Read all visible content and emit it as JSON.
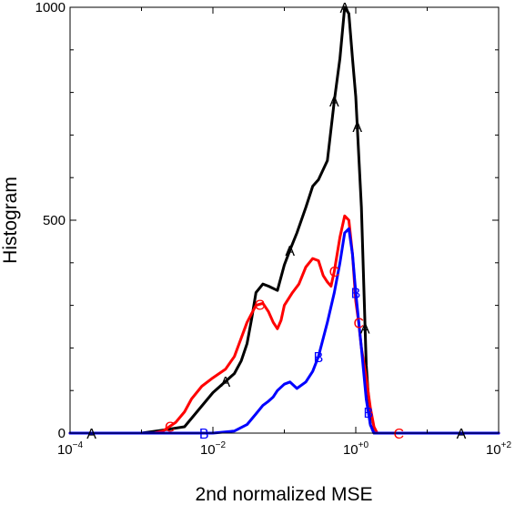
{
  "chart_data": {
    "type": "line",
    "xlabel": "2nd normalized MSE",
    "ylabel": "Histogram",
    "x_scale": "log",
    "xlim": [
      0.0001,
      100
    ],
    "ylim": [
      0,
      1000
    ],
    "x_ticks": [
      {
        "value": 0.0001,
        "base": "10",
        "exp": "−4"
      },
      {
        "value": 0.01,
        "base": "10",
        "exp": "−2"
      },
      {
        "value": 1,
        "base": "10",
        "exp": "+0"
      },
      {
        "value": 100,
        "base": "10",
        "exp": "+2"
      }
    ],
    "y_ticks": [
      {
        "value": 0,
        "label": "0"
      },
      {
        "value": 500,
        "label": "500"
      },
      {
        "value": 1000,
        "label": "1000"
      }
    ],
    "grid": false,
    "legend": "none",
    "series": [
      {
        "marker": "A",
        "color": "#000000",
        "x": [
          0.0001,
          0.001,
          0.002,
          0.004,
          0.01,
          0.02,
          0.025,
          0.03,
          0.035,
          0.04,
          0.05,
          0.06,
          0.08,
          0.1,
          0.12,
          0.15,
          0.2,
          0.25,
          0.3,
          0.4,
          0.5,
          0.6,
          0.7,
          0.8,
          0.9,
          1.0,
          1.2,
          1.4,
          1.6,
          1.8,
          100
        ],
        "y": [
          0,
          0,
          7,
          15,
          95,
          140,
          170,
          210,
          270,
          330,
          350,
          345,
          335,
          395,
          430,
          470,
          530,
          580,
          595,
          640,
          780,
          880,
          1000,
          985,
          880,
          790,
          530,
          160,
          20,
          0,
          0
        ]
      },
      {
        "marker": "C",
        "color": "#ff0000",
        "x": [
          0.0001,
          0.001,
          0.0015,
          0.002,
          0.003,
          0.004,
          0.005,
          0.007,
          0.01,
          0.015,
          0.02,
          0.03,
          0.04,
          0.05,
          0.06,
          0.07,
          0.08,
          0.09,
          0.1,
          0.13,
          0.16,
          0.2,
          0.25,
          0.3,
          0.35,
          0.4,
          0.45,
          0.5,
          0.6,
          0.7,
          0.8,
          0.9,
          1.0,
          1.1,
          1.2,
          1.4,
          1.6,
          1.8,
          2.0,
          100
        ],
        "y": [
          0,
          0,
          0,
          5,
          25,
          50,
          80,
          110,
          130,
          150,
          180,
          260,
          300,
          305,
          285,
          260,
          245,
          265,
          300,
          330,
          350,
          390,
          410,
          405,
          370,
          355,
          345,
          380,
          460,
          510,
          500,
          420,
          310,
          260,
          200,
          130,
          60,
          15,
          0,
          0
        ]
      },
      {
        "marker": "B",
        "color": "#0000ff",
        "x": [
          0.0001,
          0.001,
          0.01,
          0.02,
          0.03,
          0.04,
          0.05,
          0.06,
          0.07,
          0.08,
          0.1,
          0.12,
          0.15,
          0.2,
          0.25,
          0.3,
          0.4,
          0.5,
          0.6,
          0.7,
          0.8,
          0.9,
          1.0,
          1.2,
          1.4,
          1.6,
          1.8,
          100
        ],
        "y": [
          0,
          0,
          0,
          5,
          20,
          45,
          65,
          75,
          85,
          100,
          115,
          120,
          105,
          120,
          145,
          180,
          260,
          330,
          400,
          470,
          480,
          420,
          330,
          200,
          80,
          20,
          0,
          0
        ]
      }
    ]
  }
}
